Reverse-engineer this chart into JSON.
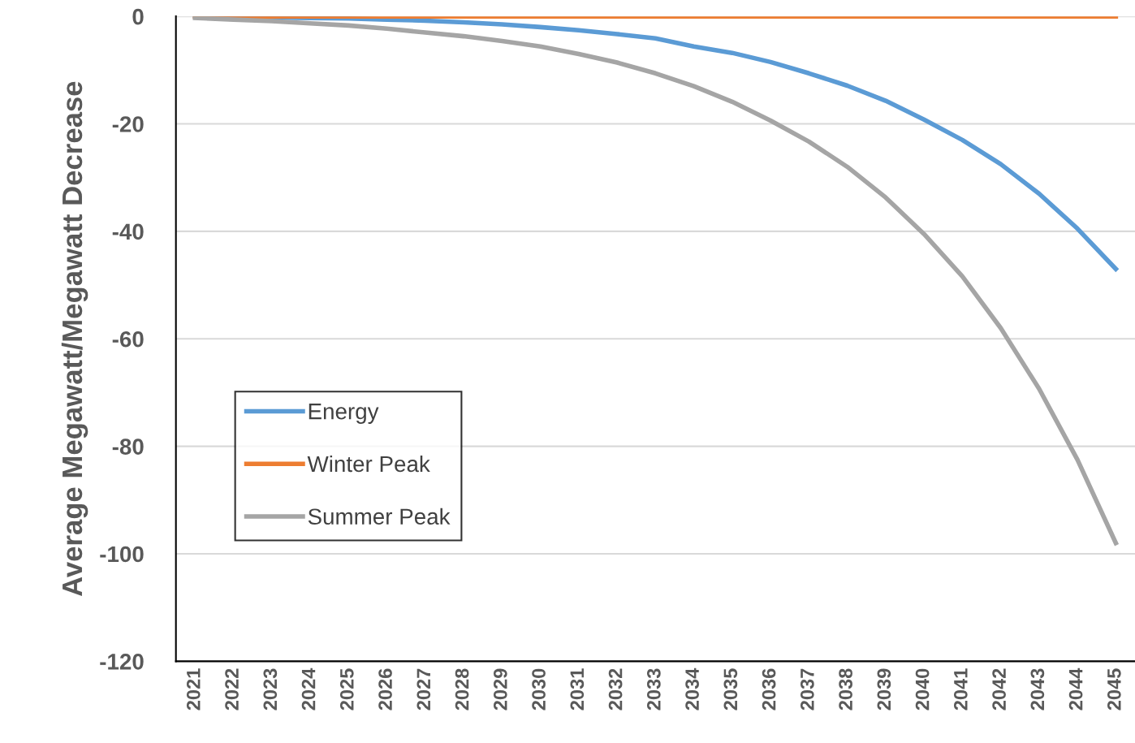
{
  "chart_data": {
    "type": "line",
    "ylabel": "Average Megawatt/Megawatt Decrease",
    "categories": [
      "2021",
      "2022",
      "2023",
      "2024",
      "2025",
      "2026",
      "2027",
      "2028",
      "2029",
      "2030",
      "2031",
      "2032",
      "2033",
      "2034",
      "2035",
      "2036",
      "2037",
      "2038",
      "2039",
      "2040",
      "2041",
      "2042",
      "2043",
      "2044",
      "2045"
    ],
    "series": [
      {
        "name": "Energy",
        "color": "#5b9bd5",
        "values": [
          0,
          -0.1,
          -0.2,
          -0.3,
          -0.4,
          -0.6,
          -0.8,
          -1.1,
          -1.5,
          -2,
          -2.6,
          -3.3,
          -4.1,
          -5.6,
          -6.8,
          -8.5,
          -10.6,
          -12.9,
          -15.7,
          -19.2,
          -23,
          -27.5,
          -33,
          -39.5,
          -47
        ]
      },
      {
        "name": "Winter Peak",
        "color": "#ed7d31",
        "values": [
          0,
          0,
          0,
          0,
          0,
          0,
          0,
          0,
          0,
          0,
          0,
          0,
          0,
          0,
          0,
          0,
          0,
          0,
          0,
          0,
          0,
          0,
          0,
          0,
          0
        ]
      },
      {
        "name": "Summer Peak",
        "color": "#a5a5a5",
        "values": [
          -0.3,
          -0.6,
          -0.9,
          -1.3,
          -1.7,
          -2.3,
          -3,
          -3.7,
          -4.6,
          -5.6,
          -7,
          -8.6,
          -10.6,
          -13,
          -15.9,
          -19.4,
          -23.3,
          -28,
          -33.7,
          -40.5,
          -48.4,
          -58,
          -69.3,
          -82.5,
          -98
        ]
      }
    ],
    "ylim": [
      -120,
      0
    ],
    "yticks": [
      -120,
      -100,
      -80,
      -60,
      -40,
      -20,
      0
    ],
    "grid": "y",
    "legend": "left",
    "marker": "none",
    "line_style": "solid"
  }
}
